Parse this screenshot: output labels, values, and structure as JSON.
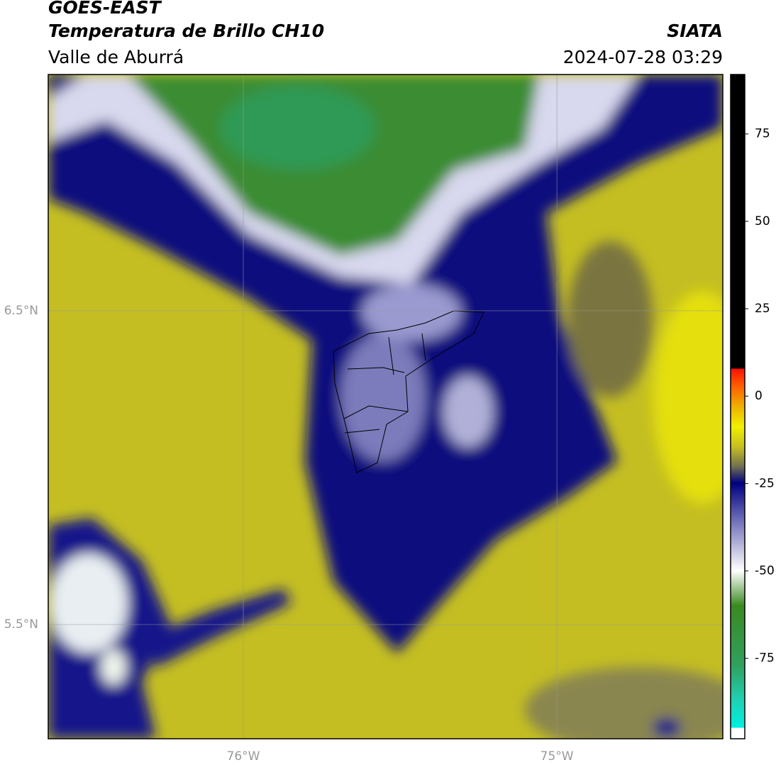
{
  "header": {
    "title": "GOES-EAST",
    "subtitle": "Temperatura de Brillo CH10",
    "region": "Valle de Aburrá",
    "source": "SIATA",
    "timestamp": "2024-07-28 03:29"
  },
  "map": {
    "xlim": [
      -76.622,
      -74.471
    ],
    "ylim": [
      5.136,
      7.253
    ],
    "xticks": [
      {
        "value": -76,
        "label": "76°W"
      },
      {
        "value": -75,
        "label": "75°W"
      }
    ],
    "yticks": [
      {
        "value": 6.5,
        "label": "6.5°N"
      },
      {
        "value": 5.5,
        "label": "5.5°N"
      }
    ]
  },
  "colorbar": {
    "lim": [
      -98,
      92
    ],
    "ticks": [
      75,
      50,
      25,
      0,
      -25,
      -50,
      -75
    ]
  }
}
